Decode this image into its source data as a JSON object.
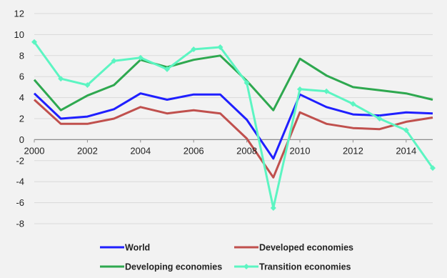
{
  "chart_data": {
    "type": "line",
    "x": [
      2000,
      2001,
      2002,
      2003,
      2004,
      2005,
      2006,
      2007,
      2008,
      2009,
      2010,
      2011,
      2012,
      2013,
      2014,
      2015
    ],
    "xticks": [
      2000,
      2002,
      2004,
      2006,
      2008,
      2010,
      2012,
      2014
    ],
    "yticks": [
      -8,
      -6,
      -4,
      -2,
      0,
      2,
      4,
      6,
      8,
      10,
      12
    ],
    "xlim": [
      2000,
      2015
    ],
    "ylim": [
      -8,
      12
    ],
    "grid": "horizontal",
    "legend": "bottom",
    "series": [
      {
        "name": "World",
        "color": "#1f1fff",
        "marker": "none",
        "values": [
          4.4,
          2.0,
          2.2,
          2.9,
          4.4,
          3.8,
          4.3,
          4.3,
          1.9,
          -1.8,
          4.3,
          3.1,
          2.4,
          2.3,
          2.6,
          2.5
        ]
      },
      {
        "name": "Developed economies",
        "color": "#c0504d",
        "marker": "none",
        "values": [
          3.8,
          1.5,
          1.5,
          2.0,
          3.1,
          2.5,
          2.8,
          2.5,
          0.1,
          -3.6,
          2.6,
          1.5,
          1.1,
          1.0,
          1.7,
          2.1
        ]
      },
      {
        "name": "Developing economies",
        "color": "#2ea84f",
        "marker": "none",
        "values": [
          5.7,
          2.8,
          4.2,
          5.2,
          7.6,
          6.9,
          7.6,
          8.0,
          5.6,
          2.8,
          7.7,
          6.1,
          5.0,
          4.7,
          4.4,
          3.8
        ]
      },
      {
        "name": "Transition economies",
        "color": "#5cf5c2",
        "marker": "diamond",
        "values": [
          9.3,
          5.8,
          5.2,
          7.5,
          7.8,
          6.7,
          8.6,
          8.8,
          5.4,
          -6.5,
          4.8,
          4.6,
          3.4,
          2.0,
          0.9,
          -2.7
        ]
      }
    ]
  }
}
